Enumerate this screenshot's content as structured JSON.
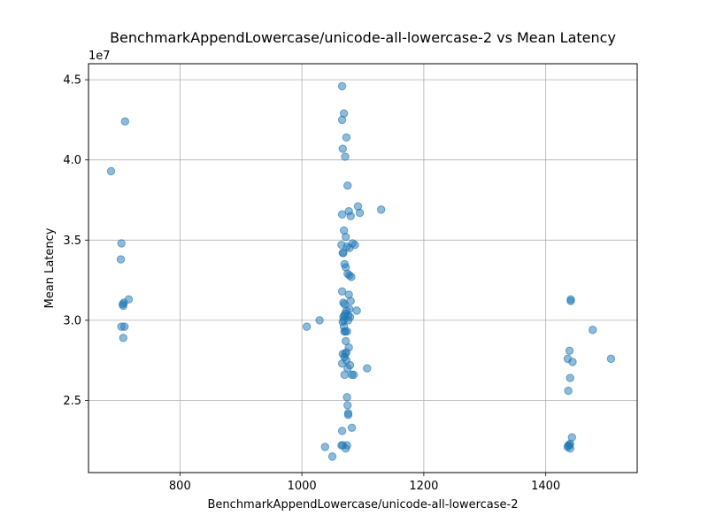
{
  "chart_data": {
    "type": "scatter",
    "title": "BenchmarkAppendLowercase/unicode-all-lowercase-2 vs Mean Latency",
    "xlabel": "BenchmarkAppendLowercase/unicode-all-lowercase-2",
    "ylabel": "Mean Latency",
    "y_offset_text": "1e7",
    "xlim": [
      650,
      1550
    ],
    "ylim": [
      2.05,
      4.6
    ],
    "x_ticks": [
      800,
      1000,
      1200,
      1400
    ],
    "y_ticks": [
      2.5,
      3.0,
      3.5,
      4.0,
      4.5
    ],
    "x_tick_labels": [
      "800",
      "1000",
      "1200",
      "1400"
    ],
    "y_tick_labels": [
      "2.5",
      "3.0",
      "3.5",
      "4.0",
      "4.5"
    ],
    "grid": true,
    "marker_color": "#1f77b4",
    "series": [
      {
        "x": [
          687,
          710,
          704,
          703,
          708,
          706,
          707,
          704,
          716,
          709,
          707,
          1008,
          1029,
          1038,
          1050,
          1065,
          1066,
          1067,
          1068,
          1069,
          1070,
          1071,
          1072,
          1073,
          1074,
          1075,
          1076,
          1077,
          1078,
          1079,
          1080,
          1082,
          1085,
          1087,
          1090,
          1092,
          1095,
          1107,
          1130,
          1066,
          1067,
          1069,
          1071,
          1073,
          1075,
          1077,
          1080,
          1066,
          1069,
          1072,
          1074,
          1078,
          1083,
          1065,
          1067,
          1068,
          1070,
          1072,
          1075,
          1078,
          1081,
          1066,
          1068,
          1070,
          1073,
          1076,
          1079,
          1067,
          1069,
          1071,
          1074,
          1077,
          1067,
          1071,
          1066,
          1070,
          1073,
          1070,
          1075,
          1076,
          1082,
          1066,
          1072,
          1074,
          1070,
          1076,
          1436,
          1441,
          1439,
          1444,
          1477,
          1507,
          1440,
          1437,
          1443,
          1440,
          1437,
          1440,
          1439,
          1436,
          1441
        ],
        "y": [
          3.93,
          4.24,
          3.48,
          3.38,
          3.11,
          3.1,
          3.09,
          2.96,
          3.13,
          2.96,
          2.89,
          2.96,
          3.0,
          2.21,
          2.15,
          2.22,
          4.46,
          2.22,
          3.02,
          3.0,
          2.93,
          3.04,
          2.87,
          2.8,
          2.52,
          2.47,
          2.42,
          3.16,
          3.07,
          2.72,
          3.12,
          2.66,
          2.66,
          3.47,
          3.06,
          3.71,
          3.67,
          2.7,
          3.69,
          4.25,
          4.07,
          4.29,
          4.02,
          4.14,
          3.84,
          3.68,
          3.65,
          3.66,
          3.56,
          3.52,
          3.46,
          3.45,
          3.48,
          3.47,
          3.42,
          3.42,
          3.35,
          3.33,
          3.29,
          3.28,
          3.27,
          3.18,
          3.11,
          3.1,
          3.06,
          3.03,
          3.02,
          2.99,
          2.96,
          2.93,
          2.93,
          2.83,
          2.79,
          2.79,
          2.73,
          2.66,
          2.75,
          2.77,
          2.7,
          2.41,
          2.33,
          2.31,
          2.2,
          2.22,
          3.03,
          3.0,
          2.76,
          3.13,
          2.81,
          2.74,
          2.94,
          2.76,
          2.64,
          2.56,
          2.27,
          2.23,
          2.22,
          2.2,
          2.22,
          2.21,
          3.12
        ]
      }
    ]
  }
}
